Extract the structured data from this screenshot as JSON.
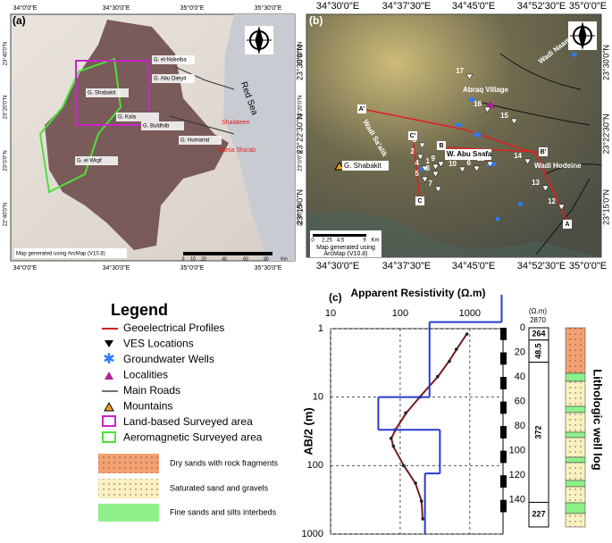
{
  "map_a": {
    "label": "(a)",
    "top_ticks": [
      "34°0'0\"E",
      "34°30'0\"E",
      "35°0'0\"E",
      "35°30'0\"E"
    ],
    "bottom_ticks": [
      "34°0'0\"E",
      "34°30'0\"E",
      "35°0'0\"E",
      "35°30'0\"E"
    ],
    "left_ticks": [
      "23°40'0\"N",
      "23°20'0\"N",
      "23°0'0\"N",
      "22°40'0\"N"
    ],
    "right_ticks": [
      "23°40'0\"N",
      "23°20'0\"N",
      "23°0'0\"N",
      "22°40'0\"N"
    ],
    "places": [
      "G. el-Nokeiba",
      "G. Abu Dieiyit",
      "G. Shabakit",
      "G. Kala",
      "G. Buldhiib",
      "G. Humariat",
      "G. el Wiqif"
    ],
    "towns": [
      "Shalateen",
      "Marsa Sha'ab"
    ],
    "sea": "Red Sea",
    "credit": "Map generated using ArcMap (V10.8)",
    "scale": [
      "0",
      "10",
      "20",
      "40",
      "60",
      "80",
      "Km"
    ]
  },
  "map_b": {
    "label": "(b)",
    "top_ticks": [
      "34°30'0\"E",
      "34°37'30\"E",
      "34°45'0\"E",
      "34°52'30\"E",
      "35°0'0\"E"
    ],
    "bottom_ticks": [
      "34°30'0\"E",
      "34°37'30\"E",
      "34°45'0\"E",
      "34°52'30\"E",
      "35°0'0\"E"
    ],
    "left_ticks": [
      "23°30'0\"N",
      "23°22'30\"N",
      "23°15'0\"N"
    ],
    "right_ticks": [
      "23°30'0\"N",
      "23°22'30\"N",
      "23°15'0\"N"
    ],
    "places": [
      "Abraq Village",
      "W. Abu Saafa",
      "Wadi Hodeine",
      "Wadi Naam",
      "Wadi Sa'alik"
    ],
    "mountain": "G. Shabakit",
    "ves": [
      "1",
      "2",
      "3",
      "4",
      "5",
      "6",
      "7",
      "8",
      "9",
      "10",
      "11",
      "12",
      "13",
      "14",
      "15",
      "16",
      "17"
    ],
    "profiles": [
      "A",
      "A'",
      "B",
      "B'",
      "C",
      "C'"
    ],
    "scale": [
      "0",
      "2.25",
      "4.5",
      "9",
      "Km"
    ],
    "credit": [
      "Map generated using",
      "ArcMap (V10.8)"
    ]
  },
  "legend": {
    "title": "Legend",
    "items": [
      "Geoelectrical Profiles",
      "VES Locations",
      "Groundwater Wells",
      "Localities",
      "Main Roads",
      "Mountains",
      "Land-based Surveyed area",
      "Aeromagnetic Surveyed area"
    ],
    "lithology": [
      "Dry sands with rock fragments",
      "Saturated sand and gravels",
      "Fine sands and silts interbeds"
    ]
  },
  "chart_data": {
    "type": "line",
    "label": "(c)",
    "title": "Apparent Resistivity (Ω.m)",
    "y_label": "AB/2 (m)",
    "log": true,
    "xlim": [
      10,
      3000
    ],
    "xticks": [
      10,
      100,
      1000
    ],
    "ylim": [
      1,
      1000
    ],
    "yticks": [
      1,
      10,
      100,
      1000
    ],
    "grid": true,
    "x": [
      1.2,
      2,
      3,
      5,
      10,
      17,
      30,
      40,
      52,
      100,
      180,
      330,
      600
    ],
    "series": [
      {
        "color": "#cc2222",
        "values": [
          900,
          650,
          500,
          350,
          190,
          123,
          86,
          75,
          79,
          113,
          165,
          203,
          210
        ]
      },
      {
        "color": "#222222",
        "values": [
          910,
          640,
          510,
          345,
          192,
          120,
          84,
          74,
          80,
          112,
          166,
          202,
          211
        ]
      }
    ],
    "model": {
      "color": "#2a3ad0",
      "resistivities": [
        2870,
        264,
        48.5,
        372,
        227
      ],
      "depths": [
        0.8,
        10,
        30,
        130
      ]
    }
  },
  "well_log": {
    "title": "Lithologic well log",
    "unit": "(Ω.m)",
    "ylim": [
      0,
      162
    ],
    "yticks": [
      0,
      20,
      40,
      60,
      80,
      100,
      120,
      140
    ],
    "surface_resistivity": 2870,
    "resistivities": [
      264,
      48.5,
      372,
      227
    ],
    "tops": [
      0,
      10,
      28,
      142
    ],
    "bottoms": [
      10,
      28,
      142,
      162
    ]
  }
}
